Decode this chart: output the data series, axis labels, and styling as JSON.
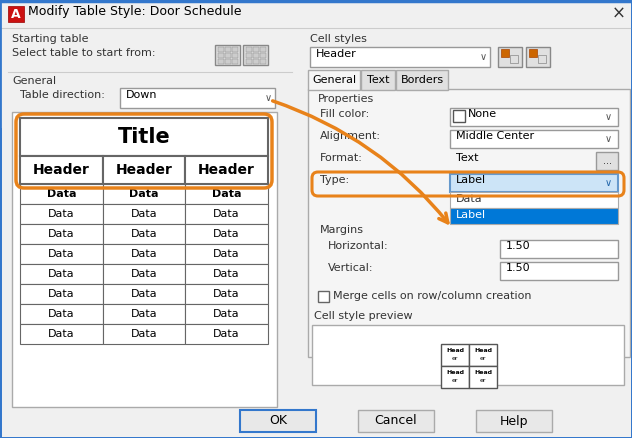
{
  "title": "Modify Table Style: Door Schedule",
  "bg_color": "#f0f0f0",
  "dialog_bg": "#f0f0f0",
  "white": "#ffffff",
  "orange": "#E8821A",
  "blue_selected": "#0078D7",
  "border_color": "#999999",
  "section_starting_table": "Starting table",
  "label_select_table": "Select table to start from:",
  "section_general": "General",
  "label_table_direction": "Table direction:",
  "dropdown_table_direction": "Down",
  "section_cell_styles": "Cell styles",
  "dropdown_cell_style": "Header",
  "tabs": [
    "General",
    "Text",
    "Borders"
  ],
  "active_tab": "General",
  "label_properties": "Properties",
  "label_fill_color": "Fill color:",
  "fill_color_value": "None",
  "label_alignment": "Alignment:",
  "alignment_value": "Middle Center",
  "label_format": "Format:",
  "format_value": "Text",
  "label_type": "Type:",
  "type_value": "Label",
  "dropdown_type_items": [
    "Data",
    "Label"
  ],
  "dropdown_type_selected": "Label",
  "label_margins": "Margins",
  "label_horizontal": "Horizontal:",
  "horizontal_value": "1.50",
  "label_vertical": "Vertical:",
  "vertical_value": "1.50",
  "merge_cells_text": "Merge cells on row/column creation",
  "cell_style_preview": "Cell style preview",
  "table_title": "Title",
  "table_headers": [
    "Header",
    "Header",
    "Header"
  ],
  "table_data_rows": 8,
  "table_data_text": "Data",
  "arrow_color": "#E8821A",
  "highlight_color": "#E8821A",
  "titlebar_bg": "#f0f0f0",
  "titlebar_line": "#3377cc",
  "panel_bg": "#f0f0f0",
  "content_bg": "#ffffff",
  "tab_content_bg": "#f5f5f5",
  "btn_bg": "#e8e8e8"
}
